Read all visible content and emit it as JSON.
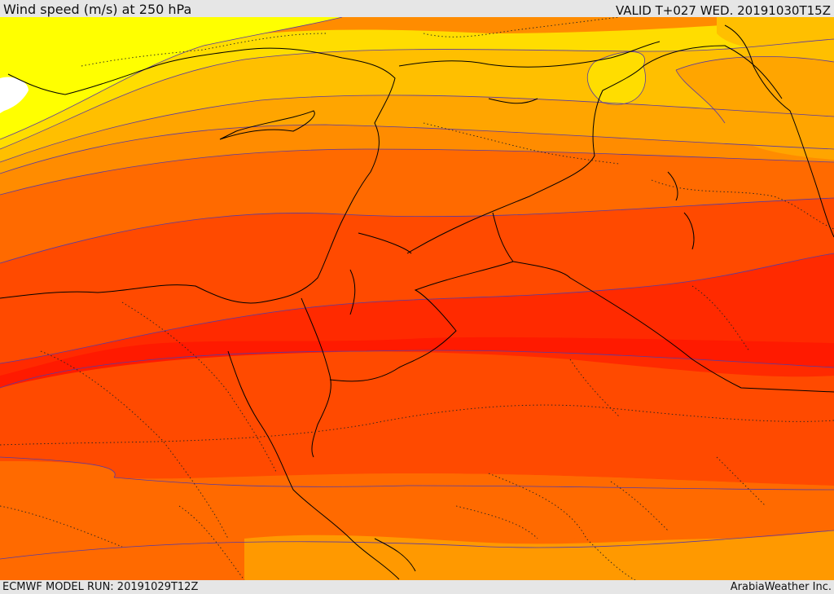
{
  "header": {
    "title": "Wind speed (m/s) at 250 hPa",
    "valid_time": "VALID T+027 WED. 20191030T15Z"
  },
  "footer": {
    "model_run": "ECMWF MODEL RUN: 20191029T12Z",
    "credit": "ArabiaWeather Inc."
  },
  "map": {
    "variable": "wind speed at 250 hPa",
    "units": "m/s",
    "band_colors": [
      "#ffff00",
      "#ffdd00",
      "#ffbf00",
      "#ffa500",
      "#ff8c00",
      "#ff6a00",
      "#ff4a00",
      "#ff2a00",
      "#ff1a00"
    ],
    "boundary_color": "#000000",
    "contour_color": "#5a3aa0"
  }
}
